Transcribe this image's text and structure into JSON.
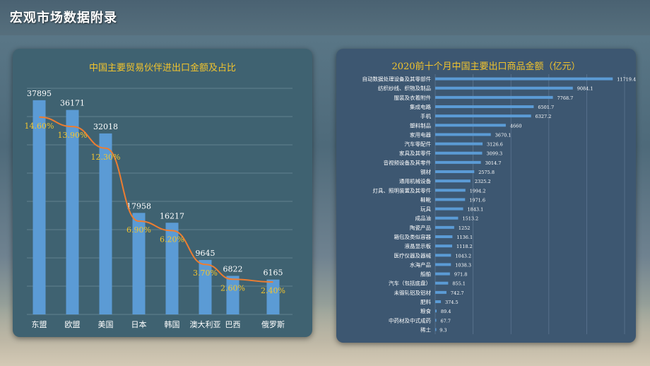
{
  "page_title": "宏观市场数据附录",
  "colors": {
    "accent_yellow": "#f2c42d",
    "bar_blue": "#5b9bd5",
    "line_orange": "#ed7d31",
    "panel_left": "#3f6271",
    "panel_right": "#3d5771"
  },
  "chart_data": [
    {
      "type": "bar",
      "title": "中国主要贸易伙伴进出口金额及占比",
      "categories": [
        "东盟",
        "欧盟",
        "美国",
        "日本",
        "韩国",
        "澳大利亚",
        "巴西",
        "俄罗斯"
      ],
      "series": [
        {
          "values": [
            37895,
            36171,
            32018,
            17958,
            16217,
            9645,
            6822,
            6165
          ],
          "data_labels": [
            "37895",
            "36171",
            "32018",
            "17958",
            "16217",
            "9645",
            "6822",
            "6165"
          ]
        },
        {
          "type": "line",
          "values": [
            14.6,
            13.9,
            12.3,
            6.9,
            6.2,
            3.7,
            2.6,
            2.4
          ],
          "data_labels": [
            "14.60%",
            "13.90%",
            "12.30%",
            "6.90%",
            "6.20%",
            "3.70%",
            "2.60%",
            "2.40%"
          ]
        }
      ],
      "ylim": [
        0,
        40000
      ],
      "grid": true
    },
    {
      "type": "bar",
      "orientation": "horizontal",
      "title": "2020前十个月中国主要出口商品金额（亿元）",
      "categories": [
        "自动数据处理设备及其零部件",
        "纺织纱线、织物及制品",
        "服装及衣着附件",
        "集成电路",
        "手机",
        "塑料制品",
        "家用电器",
        "汽车零配件",
        "家具及其零件",
        "音视频设备及其零件",
        "钢材",
        "通用机械设备",
        "灯具、照明装置及其零件",
        "鞋靴",
        "玩具",
        "成品油",
        "陶瓷产品",
        "箱包及类似容器",
        "液晶显示板",
        "医疗仪器及器械",
        "水海产品",
        "船舶",
        "汽车（包括底盘）",
        "未锻轧铝及铝材",
        "肥料",
        "粮食",
        "中药材及中式成药",
        "稀土"
      ],
      "values": [
        11719.4,
        9084.1,
        7768.7,
        6501.7,
        6327.2,
        4660,
        3670.1,
        3126.6,
        3099.3,
        3014.7,
        2575.8,
        2325.2,
        1994.2,
        1971.6,
        1843.1,
        1513.2,
        1252,
        1136.1,
        1118.2,
        1043.2,
        1038.3,
        971.8,
        855.1,
        742.7,
        374.5,
        89.4,
        67.7,
        9.3
      ],
      "data_labels": [
        "11719.4",
        "9084.1",
        "7768.7",
        "6501.7",
        "6327.2",
        "4660",
        "3670.1",
        "3126.6",
        "3099.3",
        "3014.7",
        "2575.8",
        "2325.2",
        "1994.2",
        "1971.6",
        "1843.1",
        "1513.2",
        "1252",
        "1136.1",
        "1118.2",
        "1043.2",
        "1038.3",
        "971.8",
        "855.1",
        "742.7",
        "374.5",
        "89.4",
        "67.7",
        "9.3"
      ],
      "xlim": [
        0,
        12500
      ],
      "grid": true
    }
  ]
}
